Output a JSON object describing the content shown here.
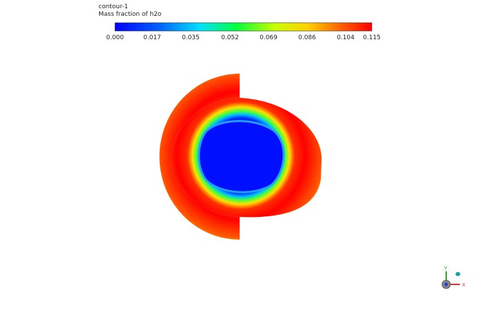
{
  "legend": {
    "title": "contour-1",
    "label": "Mass fraction of h2o",
    "ticks": [
      "0.000",
      "0.017",
      "0.035",
      "0.052",
      "0.069",
      "0.086",
      "0.104",
      "0.115"
    ]
  },
  "triad": {
    "y_label": "Y",
    "x_label": "X"
  }
}
